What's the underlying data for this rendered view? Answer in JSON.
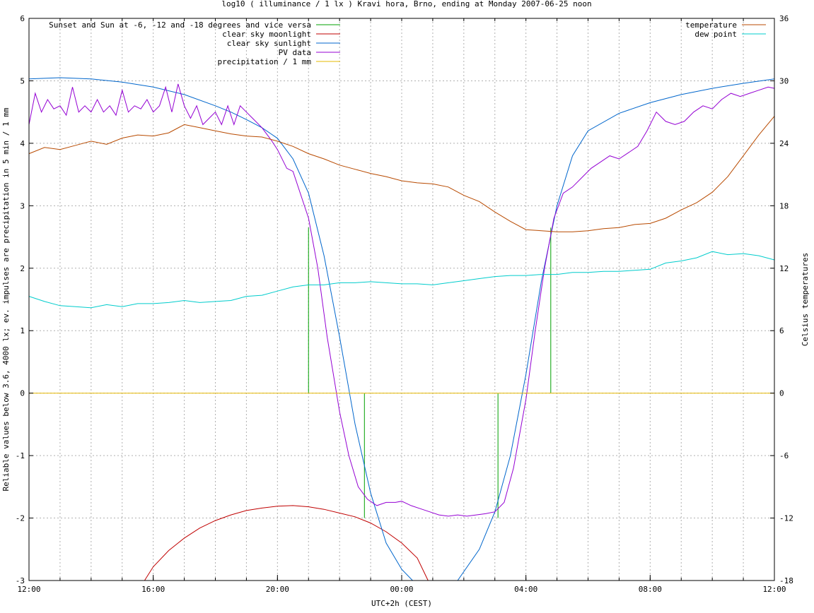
{
  "chart_data": {
    "type": "line",
    "title": "log10 ( illuminance / 1 lx ) Kravi hora, Brno, ending at Monday 2007-06-25 noon",
    "xlabel": "UTC+2h (CEST)",
    "ylabel": "Reliable values below 3.6, 4000 lx; ev. impulses are precipitation in 5 min / 1 mm",
    "y2label": "Celsius temperatures",
    "x_unit": "hours since 2007-06-24 12:00 CEST",
    "xlim": [
      0,
      24
    ],
    "ylim": [
      -3,
      6
    ],
    "y2lim": [
      -18,
      36
    ],
    "x_ticks": [
      {
        "x": 0,
        "label": "12:00"
      },
      {
        "x": 4,
        "label": "16:00"
      },
      {
        "x": 8,
        "label": "20:00"
      },
      {
        "x": 12,
        "label": "00:00"
      },
      {
        "x": 16,
        "label": "04:00"
      },
      {
        "x": 20,
        "label": "08:00"
      },
      {
        "x": 24,
        "label": "12:00"
      }
    ],
    "y_ticks": [
      -3,
      -2,
      -1,
      0,
      1,
      2,
      3,
      4,
      5,
      6
    ],
    "y2_ticks": [
      -18,
      -12,
      -6,
      0,
      6,
      12,
      18,
      24,
      30,
      36
    ],
    "grid": true,
    "legend_left_placement": "top-left",
    "legend_right_placement": "top-right",
    "series": [
      {
        "name": "Sunset and Sun at -6, -12 and -18 degrees and vice versa",
        "color": "#00a000",
        "kind": "impulses",
        "impulses": [
          {
            "x": 9.0,
            "y": 2.65
          },
          {
            "x": 9.75,
            "y": 0.0
          },
          {
            "x": 10.8,
            "y": -2.0
          },
          {
            "x": 15.1,
            "y": -2.0
          },
          {
            "x": 16.05,
            "y": 0.0
          },
          {
            "x": 16.8,
            "y": 2.65
          }
        ]
      },
      {
        "name": "clear sky moonlight",
        "color": "#c00000",
        "axis": "y",
        "points": [
          [
            3.72,
            -3.0
          ],
          [
            4.0,
            -2.78
          ],
          [
            4.5,
            -2.52
          ],
          [
            5.0,
            -2.32
          ],
          [
            5.5,
            -2.16
          ],
          [
            6.0,
            -2.04
          ],
          [
            6.5,
            -1.95
          ],
          [
            7.0,
            -1.88
          ],
          [
            7.5,
            -1.84
          ],
          [
            8.0,
            -1.81
          ],
          [
            8.5,
            -1.8
          ],
          [
            9.0,
            -1.82
          ],
          [
            9.5,
            -1.86
          ],
          [
            10.0,
            -1.92
          ],
          [
            10.5,
            -1.98
          ],
          [
            11.0,
            -2.08
          ],
          [
            11.5,
            -2.22
          ],
          [
            12.0,
            -2.4
          ],
          [
            12.5,
            -2.64
          ],
          [
            12.85,
            -3.0
          ]
        ]
      },
      {
        "name": "clear sky sunlight",
        "color": "#0066cc",
        "axis": "y",
        "points": [
          [
            0.0,
            5.03
          ],
          [
            1.0,
            5.05
          ],
          [
            2.0,
            5.03
          ],
          [
            3.0,
            4.98
          ],
          [
            4.0,
            4.9
          ],
          [
            5.0,
            4.78
          ],
          [
            6.0,
            4.6
          ],
          [
            6.5,
            4.5
          ],
          [
            7.0,
            4.38
          ],
          [
            7.5,
            4.25
          ],
          [
            8.0,
            4.08
          ],
          [
            8.5,
            3.75
          ],
          [
            9.0,
            3.2
          ],
          [
            9.5,
            2.2
          ],
          [
            10.0,
            0.9
          ],
          [
            10.5,
            -0.5
          ],
          [
            11.0,
            -1.6
          ],
          [
            11.5,
            -2.4
          ],
          [
            12.0,
            -2.82
          ],
          [
            12.35,
            -3.0
          ],
          [
            13.8,
            -3.0
          ],
          [
            14.5,
            -2.5
          ],
          [
            15.0,
            -1.9
          ],
          [
            15.5,
            -1.0
          ],
          [
            16.0,
            0.3
          ],
          [
            16.5,
            1.8
          ],
          [
            17.0,
            3.0
          ],
          [
            17.5,
            3.8
          ],
          [
            18.0,
            4.2
          ],
          [
            19.0,
            4.48
          ],
          [
            20.0,
            4.65
          ],
          [
            21.0,
            4.78
          ],
          [
            22.0,
            4.88
          ],
          [
            23.0,
            4.96
          ],
          [
            24.0,
            5.03
          ]
        ]
      },
      {
        "name": "PV data",
        "color": "#9400d3",
        "axis": "y",
        "points": [
          [
            0.0,
            4.3
          ],
          [
            0.2,
            4.8
          ],
          [
            0.4,
            4.5
          ],
          [
            0.6,
            4.7
          ],
          [
            0.8,
            4.55
          ],
          [
            1.0,
            4.6
          ],
          [
            1.2,
            4.45
          ],
          [
            1.4,
            4.9
          ],
          [
            1.6,
            4.5
          ],
          [
            1.8,
            4.6
          ],
          [
            2.0,
            4.5
          ],
          [
            2.2,
            4.7
          ],
          [
            2.4,
            4.5
          ],
          [
            2.6,
            4.6
          ],
          [
            2.8,
            4.45
          ],
          [
            3.0,
            4.85
          ],
          [
            3.2,
            4.5
          ],
          [
            3.4,
            4.6
          ],
          [
            3.6,
            4.55
          ],
          [
            3.8,
            4.7
          ],
          [
            4.0,
            4.5
          ],
          [
            4.2,
            4.6
          ],
          [
            4.4,
            4.9
          ],
          [
            4.6,
            4.5
          ],
          [
            4.8,
            4.95
          ],
          [
            5.0,
            4.6
          ],
          [
            5.2,
            4.4
          ],
          [
            5.4,
            4.6
          ],
          [
            5.6,
            4.3
          ],
          [
            5.8,
            4.4
          ],
          [
            6.0,
            4.5
          ],
          [
            6.2,
            4.3
          ],
          [
            6.4,
            4.6
          ],
          [
            6.6,
            4.3
          ],
          [
            6.8,
            4.6
          ],
          [
            7.0,
            4.5
          ],
          [
            7.2,
            4.4
          ],
          [
            7.5,
            4.25
          ],
          [
            7.8,
            4.05
          ],
          [
            8.0,
            3.9
          ],
          [
            8.3,
            3.6
          ],
          [
            8.5,
            3.55
          ],
          [
            8.8,
            3.1
          ],
          [
            9.0,
            2.8
          ],
          [
            9.3,
            2.0
          ],
          [
            9.6,
            0.9
          ],
          [
            10.0,
            -0.3
          ],
          [
            10.3,
            -1.0
          ],
          [
            10.6,
            -1.5
          ],
          [
            10.9,
            -1.7
          ],
          [
            11.2,
            -1.8
          ],
          [
            11.5,
            -1.75
          ],
          [
            11.8,
            -1.75
          ],
          [
            12.0,
            -1.73
          ],
          [
            12.3,
            -1.8
          ],
          [
            12.6,
            -1.85
          ],
          [
            12.9,
            -1.9
          ],
          [
            13.2,
            -1.95
          ],
          [
            13.5,
            -1.97
          ],
          [
            13.8,
            -1.95
          ],
          [
            14.1,
            -1.97
          ],
          [
            14.4,
            -1.95
          ],
          [
            14.7,
            -1.93
          ],
          [
            15.0,
            -1.9
          ],
          [
            15.3,
            -1.75
          ],
          [
            15.6,
            -1.2
          ],
          [
            16.0,
            -0.1
          ],
          [
            16.3,
            1.0
          ],
          [
            16.6,
            2.0
          ],
          [
            16.9,
            2.8
          ],
          [
            17.2,
            3.2
          ],
          [
            17.5,
            3.3
          ],
          [
            17.8,
            3.45
          ],
          [
            18.1,
            3.6
          ],
          [
            18.4,
            3.7
          ],
          [
            18.7,
            3.8
          ],
          [
            19.0,
            3.75
          ],
          [
            19.3,
            3.85
          ],
          [
            19.6,
            3.95
          ],
          [
            19.9,
            4.2
          ],
          [
            20.2,
            4.5
          ],
          [
            20.5,
            4.35
          ],
          [
            20.8,
            4.3
          ],
          [
            21.1,
            4.35
          ],
          [
            21.4,
            4.5
          ],
          [
            21.7,
            4.6
          ],
          [
            22.0,
            4.55
          ],
          [
            22.3,
            4.7
          ],
          [
            22.6,
            4.8
          ],
          [
            22.9,
            4.75
          ],
          [
            23.2,
            4.8
          ],
          [
            23.5,
            4.85
          ],
          [
            23.8,
            4.9
          ],
          [
            24.0,
            4.88
          ]
        ]
      },
      {
        "name": "precipitation / 1 mm",
        "color": "#e6b800",
        "axis": "y",
        "points": [
          [
            0,
            0
          ],
          [
            24,
            0
          ]
        ]
      },
      {
        "name": "temperature",
        "color": "#b84a00",
        "axis": "y2",
        "points": [
          [
            0.0,
            23.0
          ],
          [
            0.5,
            23.6
          ],
          [
            1.0,
            23.4
          ],
          [
            1.5,
            23.8
          ],
          [
            2.0,
            24.2
          ],
          [
            2.5,
            23.9
          ],
          [
            3.0,
            24.5
          ],
          [
            3.5,
            24.8
          ],
          [
            4.0,
            24.7
          ],
          [
            4.5,
            25.0
          ],
          [
            5.0,
            25.8
          ],
          [
            5.5,
            25.5
          ],
          [
            6.0,
            25.2
          ],
          [
            6.5,
            24.9
          ],
          [
            7.0,
            24.7
          ],
          [
            7.5,
            24.6
          ],
          [
            8.0,
            24.2
          ],
          [
            8.5,
            23.7
          ],
          [
            9.0,
            23.0
          ],
          [
            9.5,
            22.5
          ],
          [
            10.0,
            21.9
          ],
          [
            10.5,
            21.5
          ],
          [
            11.0,
            21.1
          ],
          [
            11.5,
            20.8
          ],
          [
            12.0,
            20.4
          ],
          [
            12.5,
            20.2
          ],
          [
            13.0,
            20.1
          ],
          [
            13.5,
            19.8
          ],
          [
            14.0,
            19.0
          ],
          [
            14.5,
            18.4
          ],
          [
            15.0,
            17.4
          ],
          [
            15.5,
            16.5
          ],
          [
            16.0,
            15.7
          ],
          [
            16.5,
            15.6
          ],
          [
            17.0,
            15.5
          ],
          [
            17.5,
            15.5
          ],
          [
            18.0,
            15.6
          ],
          [
            18.5,
            15.8
          ],
          [
            19.0,
            15.9
          ],
          [
            19.5,
            16.2
          ],
          [
            20.0,
            16.3
          ],
          [
            20.5,
            16.8
          ],
          [
            21.0,
            17.6
          ],
          [
            21.5,
            18.3
          ],
          [
            22.0,
            19.3
          ],
          [
            22.5,
            20.8
          ],
          [
            23.0,
            22.8
          ],
          [
            23.5,
            24.8
          ],
          [
            24.0,
            26.6
          ]
        ]
      },
      {
        "name": "dew point",
        "color": "#00cccc",
        "axis": "y2",
        "points": [
          [
            0.0,
            9.3
          ],
          [
            0.5,
            8.8
          ],
          [
            1.0,
            8.4
          ],
          [
            1.5,
            8.3
          ],
          [
            2.0,
            8.2
          ],
          [
            2.5,
            8.5
          ],
          [
            3.0,
            8.3
          ],
          [
            3.5,
            8.6
          ],
          [
            4.0,
            8.6
          ],
          [
            4.5,
            8.7
          ],
          [
            5.0,
            8.9
          ],
          [
            5.5,
            8.7
          ],
          [
            6.0,
            8.8
          ],
          [
            6.5,
            8.9
          ],
          [
            7.0,
            9.3
          ],
          [
            7.5,
            9.4
          ],
          [
            8.0,
            9.8
          ],
          [
            8.5,
            10.2
          ],
          [
            9.0,
            10.4
          ],
          [
            9.5,
            10.4
          ],
          [
            10.0,
            10.6
          ],
          [
            10.5,
            10.6
          ],
          [
            11.0,
            10.7
          ],
          [
            11.5,
            10.6
          ],
          [
            12.0,
            10.5
          ],
          [
            12.5,
            10.5
          ],
          [
            13.0,
            10.4
          ],
          [
            13.5,
            10.6
          ],
          [
            14.0,
            10.8
          ],
          [
            14.5,
            11.0
          ],
          [
            15.0,
            11.2
          ],
          [
            15.5,
            11.3
          ],
          [
            16.0,
            11.3
          ],
          [
            16.5,
            11.4
          ],
          [
            17.0,
            11.4
          ],
          [
            17.5,
            11.6
          ],
          [
            18.0,
            11.6
          ],
          [
            18.5,
            11.7
          ],
          [
            19.0,
            11.7
          ],
          [
            19.5,
            11.8
          ],
          [
            20.0,
            11.9
          ],
          [
            20.5,
            12.5
          ],
          [
            21.0,
            12.7
          ],
          [
            21.5,
            13.0
          ],
          [
            22.0,
            13.6
          ],
          [
            22.5,
            13.3
          ],
          [
            23.0,
            13.4
          ],
          [
            23.5,
            13.2
          ],
          [
            24.0,
            12.8
          ]
        ]
      }
    ]
  }
}
